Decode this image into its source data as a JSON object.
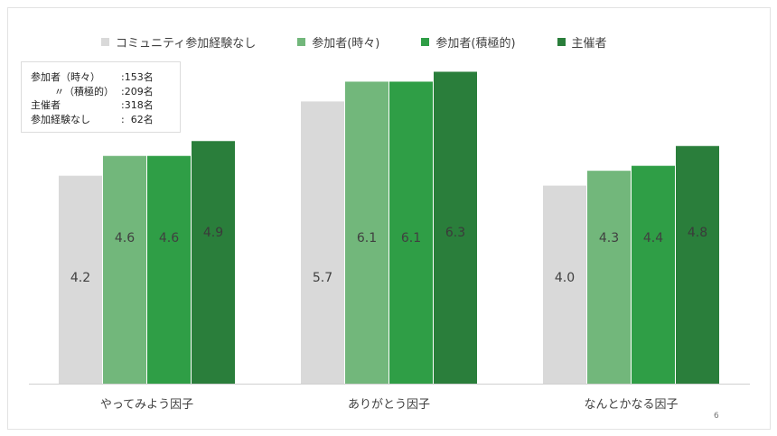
{
  "legend": {
    "items": [
      {
        "label": "コミュニティ参加経験なし",
        "color": "#d9d9d9"
      },
      {
        "label": "参加者(時々)",
        "color": "#72b77b"
      },
      {
        "label": "参加者(積極的)",
        "color": "#2f9e46"
      },
      {
        "label": "主催者",
        "color": "#2a7e3b"
      }
    ]
  },
  "info_box": {
    "rows": [
      {
        "label": "参加者（時々）",
        "value": ":153名"
      },
      {
        "label": "〃（積極的）",
        "value": ":209名"
      },
      {
        "label": "主催者",
        "value": ":318名"
      },
      {
        "label": "参加経験なし",
        "value": ":  62名"
      }
    ]
  },
  "page_number": "6",
  "chart_data": {
    "type": "bar",
    "categories": [
      "やってみよう因子",
      "ありがとう因子",
      "なんとかなる因子"
    ],
    "series": [
      {
        "name": "コミュニティ参加経験なし",
        "values": [
          4.2,
          5.7,
          4.0
        ],
        "color": "#d9d9d9",
        "label_color": "#404040"
      },
      {
        "name": "参加者(時々)",
        "values": [
          4.6,
          6.1,
          4.3
        ],
        "color": "#72b77b",
        "label_color": "#404040"
      },
      {
        "name": "参加者(積極的)",
        "values": [
          4.6,
          6.1,
          4.4
        ],
        "color": "#2f9e46",
        "label_color": "#404040"
      },
      {
        "name": "主催者",
        "values": [
          4.9,
          6.3,
          4.8
        ],
        "color": "#2a7e3b",
        "label_color": "#3a3a3a"
      }
    ],
    "data_labels": [
      [
        "4.2",
        "5.7",
        "4.0"
      ],
      [
        "4.6",
        "6.1",
        "4.3"
      ],
      [
        "4.6",
        "6.1",
        "4.4"
      ],
      [
        "4.9",
        "6.3",
        "4.8"
      ]
    ],
    "ylim": [
      0,
      7
    ],
    "grid": false,
    "legend_position": "top"
  }
}
